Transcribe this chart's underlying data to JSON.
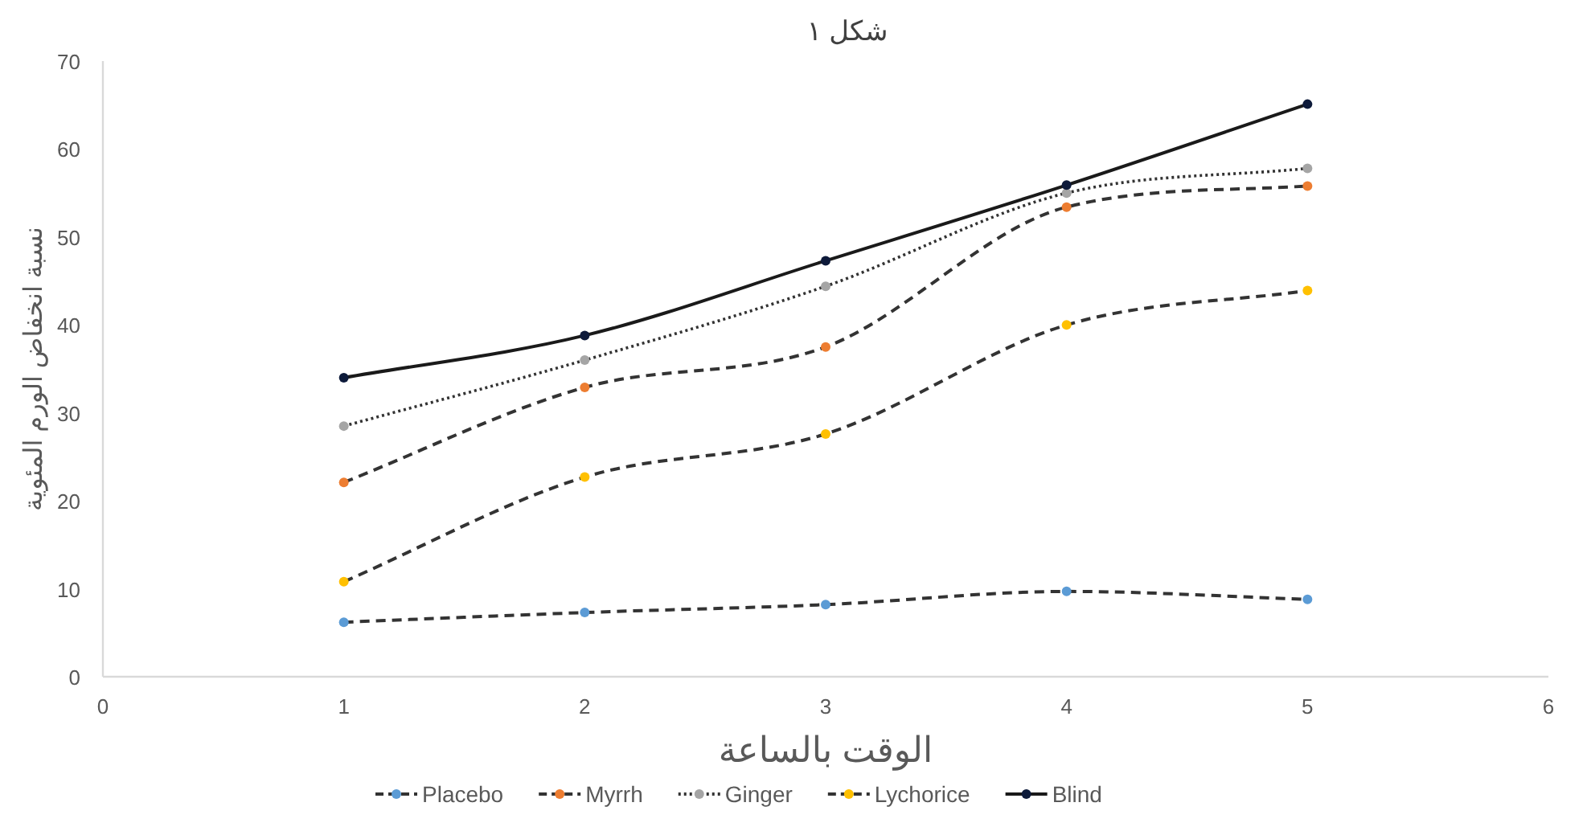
{
  "chart_data": {
    "type": "line",
    "title": "شكل ١",
    "xlabel": "الوقت بالساعة",
    "ylabel": "نسبة انخفاض الورم المئوية",
    "x": [
      1,
      2,
      3,
      4,
      5
    ],
    "series": [
      {
        "name": "Placebo",
        "color": "#5b9bd5",
        "line_style": "dashed",
        "values": [
          6.2,
          7.3,
          8.2,
          9.7,
          8.8
        ]
      },
      {
        "name": "Myrrh",
        "color": "#ed7d31",
        "line_style": "dashed",
        "values": [
          22.1,
          32.9,
          37.5,
          53.4,
          55.8
        ]
      },
      {
        "name": "Ginger",
        "color": "#a5a5a5",
        "line_style": "dotted",
        "values": [
          28.5,
          36.0,
          44.4,
          55.0,
          57.8
        ]
      },
      {
        "name": "Lychorice",
        "color": "#ffc000",
        "line_style": "dashed",
        "values": [
          10.8,
          22.7,
          27.6,
          40.0,
          43.9
        ]
      },
      {
        "name": "Blind",
        "color": "#0d1a3a",
        "line_style": "solid",
        "values": [
          34.0,
          38.8,
          47.3,
          55.9,
          65.1
        ]
      }
    ],
    "xlim": [
      0,
      6
    ],
    "xticks": [
      0,
      1,
      2,
      3,
      4,
      5,
      6
    ],
    "ylim": [
      0,
      70
    ],
    "yticks": [
      0,
      10,
      20,
      30,
      40,
      50,
      60,
      70
    ],
    "marker": "circle",
    "grid": false,
    "legend": "bottom"
  }
}
